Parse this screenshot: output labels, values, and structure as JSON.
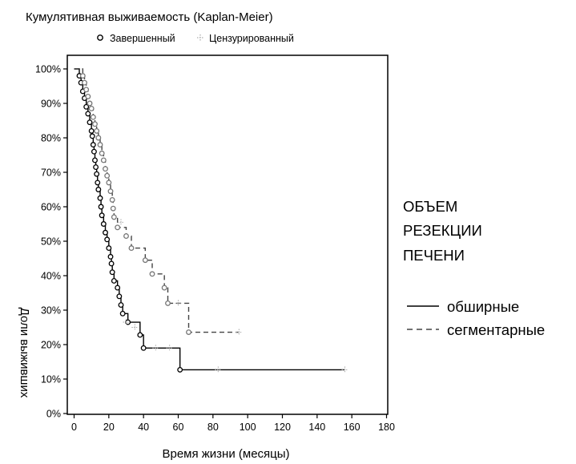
{
  "chart_data": {
    "type": "line",
    "title": "Кумулятивная выживаемость (Kaplan-Meier)",
    "top_legend": {
      "completed_label": "Завершенный",
      "censored_label": "Цензурированный"
    },
    "xlabel": "Время жизни (месяцы)",
    "ylabel": "Доли выживших",
    "xlim": [
      0,
      180
    ],
    "ylim": [
      0,
      100
    ],
    "x_ticks": [
      0,
      20,
      40,
      60,
      80,
      100,
      120,
      140,
      160,
      180
    ],
    "y_ticks": [
      "0%",
      "10%",
      "20%",
      "30%",
      "40%",
      "50%",
      "60%",
      "70%",
      "80%",
      "90%",
      "100%"
    ],
    "grid": false,
    "side_legend": {
      "title_lines": [
        "ОБЪЕМ",
        "РЕЗЕКЦИИ",
        "ПЕЧЕНИ"
      ],
      "placement": "right"
    },
    "series": [
      {
        "name": "обширные",
        "line_style": "solid",
        "color": "#000000",
        "steps": [
          [
            0,
            100
          ],
          [
            3,
            98
          ],
          [
            4,
            96
          ],
          [
            5,
            93.5
          ],
          [
            6,
            91.5
          ],
          [
            7,
            89
          ],
          [
            8,
            87
          ],
          [
            9,
            84.5
          ],
          [
            10,
            82
          ],
          [
            10.5,
            80.5
          ],
          [
            11,
            78
          ],
          [
            11.5,
            76
          ],
          [
            12,
            73.5
          ],
          [
            12.5,
            71.5
          ],
          [
            13,
            69.5
          ],
          [
            13.5,
            67
          ],
          [
            14,
            65
          ],
          [
            15,
            62.5
          ],
          [
            15.5,
            60
          ],
          [
            16,
            57.5
          ],
          [
            17,
            55
          ],
          [
            18,
            52.5
          ],
          [
            19,
            50.5
          ],
          [
            20,
            48
          ],
          [
            21,
            45.5
          ],
          [
            21.5,
            43.5
          ],
          [
            22,
            41
          ],
          [
            23,
            38.5
          ],
          [
            25,
            36.5
          ],
          [
            26,
            34
          ],
          [
            27,
            31.5
          ],
          [
            28,
            29
          ],
          [
            31,
            26.5
          ],
          [
            38,
            22.8
          ],
          [
            40,
            19
          ],
          [
            61,
            12.7
          ],
          [
            156,
            12.7
          ]
        ],
        "completed_points": [
          [
            3,
            98
          ],
          [
            4,
            96
          ],
          [
            5,
            93.5
          ],
          [
            6,
            91.5
          ],
          [
            7,
            89
          ],
          [
            8,
            87
          ],
          [
            9,
            84.5
          ],
          [
            10,
            82
          ],
          [
            10.5,
            80.5
          ],
          [
            11,
            78
          ],
          [
            11.5,
            76
          ],
          [
            12,
            73.5
          ],
          [
            12.5,
            71.5
          ],
          [
            13,
            69.5
          ],
          [
            13.5,
            67
          ],
          [
            14,
            65
          ],
          [
            15,
            62.5
          ],
          [
            15.5,
            60
          ],
          [
            16,
            57.5
          ],
          [
            17,
            55
          ],
          [
            18,
            52.5
          ],
          [
            19,
            50.5
          ],
          [
            20,
            48
          ],
          [
            21,
            45.5
          ],
          [
            21.5,
            43.5
          ],
          [
            22,
            41
          ],
          [
            23,
            38.5
          ],
          [
            25,
            36.5
          ],
          [
            26,
            34
          ],
          [
            27,
            31.5
          ],
          [
            28,
            29
          ],
          [
            31,
            26.5
          ],
          [
            38,
            22.8
          ],
          [
            40,
            19
          ],
          [
            61,
            12.7
          ]
        ],
        "censored_points": [
          [
            83,
            12.7
          ],
          [
            156,
            12.7
          ]
        ]
      },
      {
        "name": "сегментарные",
        "line_style": "dashed",
        "color": "#444444",
        "steps": [
          [
            0,
            100
          ],
          [
            5,
            98
          ],
          [
            6,
            96
          ],
          [
            7,
            94
          ],
          [
            8,
            92
          ],
          [
            9,
            90
          ],
          [
            10,
            88.5
          ],
          [
            11,
            86
          ],
          [
            12,
            84
          ],
          [
            13,
            82
          ],
          [
            14,
            80
          ],
          [
            15,
            78
          ],
          [
            16,
            75.5
          ],
          [
            17,
            73.5
          ],
          [
            18,
            71
          ],
          [
            19,
            69
          ],
          [
            20,
            67
          ],
          [
            21,
            64.5
          ],
          [
            22,
            62
          ],
          [
            22.5,
            59.5
          ],
          [
            23,
            57
          ],
          [
            25,
            54
          ],
          [
            30,
            51.5
          ],
          [
            33,
            48
          ],
          [
            41,
            44.5
          ],
          [
            45,
            40.5
          ],
          [
            52,
            36.5
          ],
          [
            54,
            32
          ],
          [
            66,
            23.6
          ],
          [
            95,
            23.6
          ]
        ],
        "completed_points": [
          [
            5,
            98
          ],
          [
            6,
            96
          ],
          [
            7,
            94
          ],
          [
            8,
            92
          ],
          [
            9,
            90
          ],
          [
            10,
            88.5
          ],
          [
            11,
            86
          ],
          [
            12,
            84
          ],
          [
            13,
            82
          ],
          [
            14,
            80
          ],
          [
            15,
            78
          ],
          [
            16,
            75.5
          ],
          [
            17,
            73.5
          ],
          [
            18,
            71
          ],
          [
            19,
            69
          ],
          [
            20,
            67
          ],
          [
            21,
            64.5
          ],
          [
            22,
            62
          ],
          [
            22.5,
            59.5
          ],
          [
            23,
            57
          ],
          [
            25,
            54
          ],
          [
            30,
            51.5
          ],
          [
            33,
            48
          ],
          [
            41,
            44.5
          ],
          [
            45,
            40.5
          ],
          [
            52,
            36.5
          ],
          [
            54,
            32
          ],
          [
            66,
            23.6
          ]
        ],
        "censored_points": [
          [
            27,
            55.5
          ],
          [
            30,
            26.5
          ],
          [
            35,
            25
          ],
          [
            47,
            19
          ],
          [
            55,
            19
          ],
          [
            60,
            32
          ],
          [
            95,
            23.6
          ]
        ]
      }
    ]
  }
}
